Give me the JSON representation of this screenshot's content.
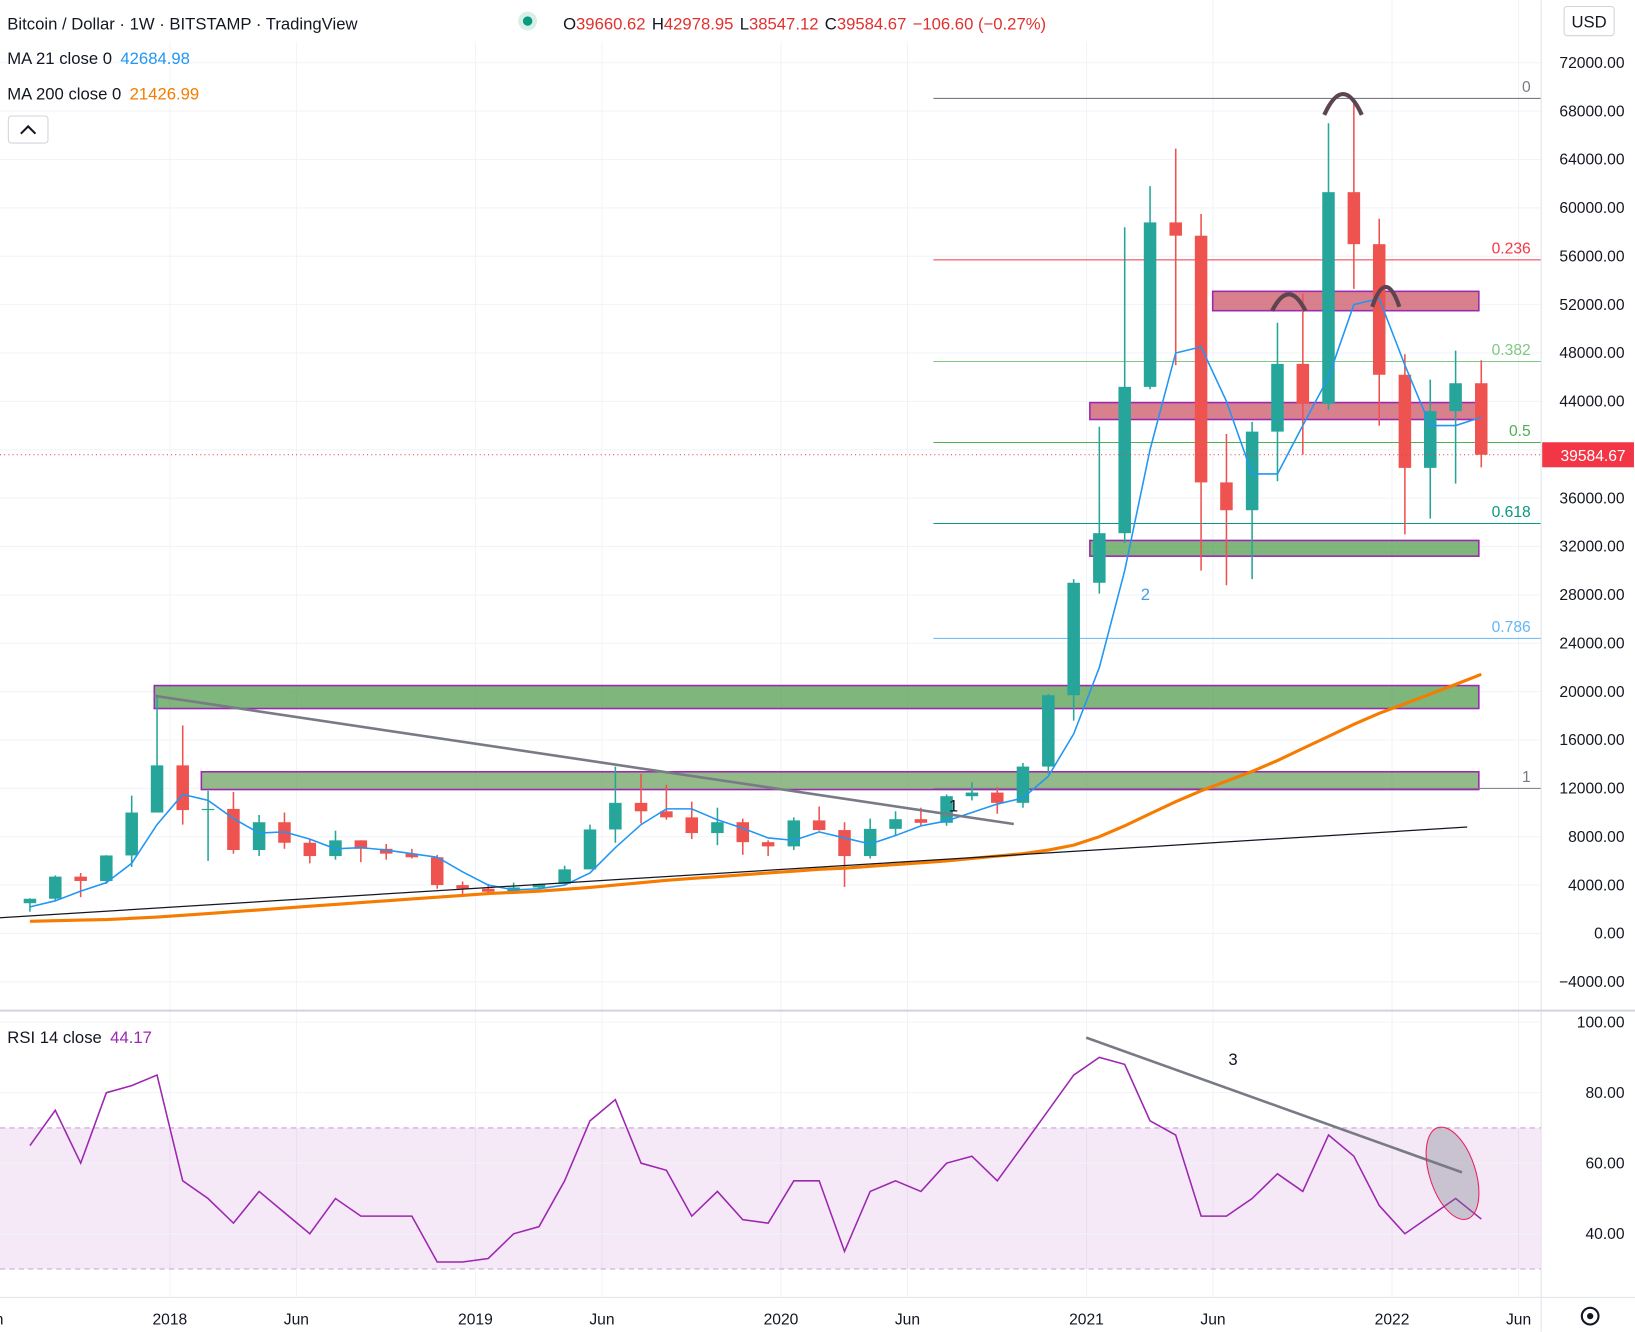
{
  "header": {
    "symbol": "Bitcoin / Dollar · 1W · BITSTAMP · TradingView",
    "ohlc": [
      {
        "label": "O",
        "value": "39660.62"
      },
      {
        "label": "H",
        "value": "42978.95"
      },
      {
        "label": "L",
        "value": "38547.12"
      },
      {
        "label": "C",
        "value": "39584.67"
      }
    ],
    "change": "−106.60 (−0.27%)",
    "currency": "USD"
  },
  "chart_data": [
    {
      "type": "candlestick",
      "x": [
        2017.542,
        2017.625,
        2017.708,
        2017.792,
        2017.875,
        2017.958,
        2018.042,
        2018.125,
        2018.208,
        2018.292,
        2018.375,
        2018.458,
        2018.542,
        2018.625,
        2018.708,
        2018.792,
        2018.875,
        2018.958,
        2019.042,
        2019.125,
        2019.208,
        2019.292,
        2019.375,
        2019.458,
        2019.542,
        2019.625,
        2019.708,
        2019.792,
        2019.875,
        2019.958,
        2020.042,
        2020.125,
        2020.208,
        2020.292,
        2020.375,
        2020.458,
        2020.542,
        2020.625,
        2020.708,
        2020.792,
        2020.875,
        2020.958,
        2021.042,
        2021.125,
        2021.208,
        2021.292,
        2021.375,
        2021.458,
        2021.542,
        2021.625,
        2021.708,
        2021.792,
        2021.875,
        2021.958,
        2022.042,
        2022.125,
        2022.208,
        2022.292
      ],
      "open": [
        2500,
        2870,
        4700,
        4340,
        6450,
        10000,
        13900,
        10200,
        10300,
        6900,
        9200,
        7500,
        6400,
        7700,
        7000,
        6600,
        6300,
        4000,
        3700,
        3450,
        3800,
        4100,
        5300,
        8600,
        10800,
        10100,
        9600,
        8300,
        9200,
        7550,
        7200,
        9350,
        8550,
        6400,
        8650,
        9450,
        9150,
        11350,
        11650,
        10800,
        13800,
        19700,
        29000,
        33100,
        45200,
        58800,
        57700,
        37300,
        35000,
        41500,
        47100,
        43800,
        61300,
        57000,
        46200,
        38500,
        43200,
        45500
      ],
      "high": [
        2900,
        4800,
        5000,
        6470,
        11400,
        19600,
        17200,
        11800,
        11700,
        9800,
        10000,
        7800,
        8500,
        7700,
        7400,
        7000,
        6500,
        4300,
        4100,
        4200,
        4100,
        5600,
        9000,
        13800,
        13200,
        12300,
        10900,
        10400,
        9500,
        7700,
        9600,
        10500,
        9200,
        9500,
        10100,
        10400,
        11500,
        12500,
        12100,
        14100,
        19800,
        29300,
        41900,
        58400,
        61800,
        64900,
        59500,
        41300,
        42300,
        50500,
        52900,
        67000,
        69000,
        59100,
        47900,
        45800,
        48200,
        47400
      ],
      "low": [
        1800,
        2700,
        3000,
        4100,
        5500,
        10000,
        9000,
        6000,
        6600,
        6400,
        7000,
        5800,
        6100,
        5900,
        6100,
        6200,
        3700,
        3200,
        3400,
        3400,
        3700,
        4100,
        5300,
        7500,
        9100,
        9400,
        7800,
        7300,
        6500,
        6400,
        6900,
        8500,
        3850,
        6200,
        8100,
        8900,
        8900,
        11000,
        9900,
        10400,
        13200,
        17600,
        28100,
        32300,
        45000,
        47000,
        30000,
        28800,
        29300,
        37400,
        39600,
        43300,
        53300,
        42000,
        33000,
        34300,
        37200,
        38547
      ],
      "close": [
        2870,
        4700,
        4340,
        6450,
        10000,
        13900,
        10200,
        10300,
        6900,
        9200,
        7500,
        6400,
        7700,
        7000,
        6600,
        6300,
        4000,
        3700,
        3450,
        3800,
        4100,
        5300,
        8600,
        10800,
        10100,
        9600,
        8300,
        9200,
        7550,
        7200,
        9350,
        8550,
        6400,
        8650,
        9450,
        9150,
        11350,
        11650,
        10800,
        13800,
        19700,
        29000,
        33100,
        45200,
        58800,
        57700,
        37300,
        35000,
        41500,
        47100,
        43800,
        61300,
        57000,
        46200,
        38500,
        43200,
        45500,
        39584.67
      ],
      "up_color": "#26a69a",
      "down_color": "#ef5350",
      "last_price_color": "#f23645",
      "series": [
        {
          "name": "MA 21 close 0",
          "color": "#2196f3",
          "values": [
            2200,
            2700,
            3500,
            4200,
            5800,
            9000,
            11500,
            11000,
            9500,
            8300,
            8400,
            7800,
            7000,
            7100,
            6900,
            6600,
            6300,
            5100,
            4000,
            3600,
            3700,
            4000,
            5000,
            7100,
            9000,
            10300,
            10300,
            9400,
            8700,
            7900,
            7700,
            8400,
            7900,
            7400,
            8100,
            8900,
            9300,
            10000,
            10700,
            11200,
            13000,
            16500,
            22000,
            30000,
            40000,
            48000,
            48500,
            44000,
            38000,
            38000,
            42000,
            46000,
            52000,
            52500,
            47000,
            42000,
            42000,
            42684.98
          ]
        },
        {
          "name": "MA 200 close 0",
          "color": "#f57c00",
          "values": [
            1000,
            1050,
            1100,
            1150,
            1250,
            1350,
            1500,
            1650,
            1800,
            1950,
            2100,
            2250,
            2400,
            2550,
            2700,
            2850,
            3000,
            3150,
            3300,
            3400,
            3500,
            3650,
            3800,
            4000,
            4200,
            4400,
            4550,
            4700,
            4850,
            5000,
            5150,
            5300,
            5400,
            5550,
            5700,
            5850,
            6000,
            6200,
            6400,
            6600,
            6900,
            7300,
            8000,
            8900,
            9900,
            10900,
            11800,
            12600,
            13400,
            14300,
            15300,
            16300,
            17300,
            18200,
            19000,
            19800,
            20600,
            21426.99
          ]
        }
      ],
      "xlim": [
        2017.444,
        2022.488
      ],
      "xticks": [
        {
          "value": 2017.414,
          "label": "Jun"
        },
        2018,
        {
          "value": 2018.414,
          "label": "Jun"
        },
        2019,
        {
          "value": 2019.414,
          "label": "Jun"
        },
        2020,
        {
          "value": 2020.414,
          "label": "Jun"
        },
        2021,
        {
          "value": 2021.414,
          "label": "Jun"
        },
        2022,
        {
          "value": 2022.414,
          "label": "Jun"
        }
      ],
      "ylim": [
        -6295,
        77174
      ],
      "yticks": [
        {
          "value": -4000,
          "label": "−4000.00"
        },
        {
          "value": 0,
          "label": "0.00"
        },
        {
          "value": 4000,
          "label": "4000.00"
        },
        {
          "value": 8000,
          "label": "8000.00"
        },
        {
          "value": 12000,
          "label": "12000.00"
        },
        {
          "value": 16000,
          "label": "16000.00"
        },
        {
          "value": 20000,
          "label": "20000.00"
        },
        {
          "value": 24000,
          "label": "24000.00"
        },
        {
          "value": 28000,
          "label": "28000.00"
        },
        {
          "value": 32000,
          "label": "32000.00"
        },
        {
          "value": 36000,
          "label": "36000.00"
        },
        {
          "value": 40000,
          "label": "40000.00"
        },
        {
          "value": 44000,
          "label": "44000.00"
        },
        {
          "value": 48000,
          "label": "48000.00"
        },
        {
          "value": 52000,
          "label": "52000.00"
        },
        {
          "value": 56000,
          "label": "56000.00"
        },
        {
          "value": 60000,
          "label": "60000.00"
        },
        {
          "value": 64000,
          "label": "64000.00"
        },
        {
          "value": 68000,
          "label": "68000.00"
        },
        {
          "value": 72000,
          "label": "72000.00"
        }
      ],
      "grid": true,
      "fib_start": 2020.499,
      "fib_levels": [
        {
          "level": 0,
          "price": 69050,
          "color": "#787b86"
        },
        {
          "level": 0.236,
          "price": 55700,
          "color": "#f23645"
        },
        {
          "level": 0.382,
          "price": 47300,
          "color": "#81c784"
        },
        {
          "level": 0.5,
          "price": 40600,
          "color": "#4caf50"
        },
        {
          "level": 0.618,
          "price": 33900,
          "color": "#089981"
        },
        {
          "level": 0.786,
          "price": 24400,
          "color": "#64b5f6"
        },
        {
          "level": 1,
          "price": 12000,
          "color": "#787b86"
        }
      ],
      "zones": [
        {
          "x": [
            2021.413,
            2022.284
          ],
          "y": [
            53100,
            51500
          ],
          "color": "#c9515f"
        },
        {
          "x": [
            2021.011,
            2022.284
          ],
          "y": [
            43900,
            42500
          ],
          "color": "#c9515f"
        },
        {
          "x": [
            2021.011,
            2022.284
          ],
          "y": [
            32500,
            31200
          ],
          "color": "#4e9a4a"
        },
        {
          "x": [
            2017.949,
            2022.284
          ],
          "y": [
            20500,
            18600
          ],
          "color": "#4e9a4a"
        },
        {
          "x": [
            2018.103,
            2022.284
          ],
          "y": [
            13370,
            11900
          ],
          "color": "#6a9f5c"
        }
      ],
      "trendlines": [
        {
          "x": [
            2017.949,
            2020.762
          ],
          "y": [
            19650,
            9050
          ],
          "color": "#787b86"
        },
        {
          "x": [
            2017.444,
            2022.246
          ],
          "y": [
            1300,
            8800
          ],
          "color": "#131722"
        }
      ],
      "annotations": [
        "1",
        "2"
      ]
    },
    {
      "type": "line",
      "name": "RSI 14 close",
      "color": "#9c27b0",
      "x": [
        2017.542,
        2017.625,
        2017.708,
        2017.792,
        2017.875,
        2017.958,
        2018.042,
        2018.125,
        2018.208,
        2018.292,
        2018.375,
        2018.458,
        2018.542,
        2018.625,
        2018.708,
        2018.792,
        2018.875,
        2018.958,
        2019.042,
        2019.125,
        2019.208,
        2019.292,
        2019.375,
        2019.458,
        2019.542,
        2019.625,
        2019.708,
        2019.792,
        2019.875,
        2019.958,
        2020.042,
        2020.125,
        2020.208,
        2020.292,
        2020.375,
        2020.458,
        2020.542,
        2020.625,
        2020.708,
        2020.792,
        2020.875,
        2020.958,
        2021.042,
        2021.125,
        2021.208,
        2021.292,
        2021.375,
        2021.458,
        2021.542,
        2021.625,
        2021.708,
        2021.792,
        2021.875,
        2021.958,
        2022.042,
        2022.125,
        2022.208,
        2022.292
      ],
      "values": [
        65,
        75,
        60,
        80,
        82,
        85,
        55,
        50,
        43,
        52,
        46,
        40,
        50,
        45,
        45,
        45,
        32,
        32,
        33,
        40,
        42,
        55,
        72,
        78,
        60,
        58,
        45,
        52,
        44,
        43,
        55,
        55,
        35,
        52,
        55,
        52,
        60,
        62,
        55,
        65,
        75,
        85,
        90,
        88,
        72,
        68,
        45,
        45,
        50,
        57,
        52,
        68,
        62,
        48,
        40,
        45,
        50,
        44.17
      ],
      "xlim": [
        2017.444,
        2022.488
      ],
      "ylim": [
        22.26,
        102.96
      ],
      "yticks": [
        {
          "value": 40,
          "label": "40.00"
        },
        {
          "value": 60,
          "label": "60.00"
        },
        {
          "value": 80,
          "label": "80.00"
        },
        {
          "value": 100,
          "label": "100.00"
        }
      ],
      "band": [
        30,
        70
      ],
      "trendlines": [
        {
          "x": [
            2020.999,
            2022.229
          ],
          "y": [
            95.6,
            57.4
          ],
          "color": "#787b86"
        }
      ],
      "annotations": [
        "3"
      ]
    }
  ]
}
